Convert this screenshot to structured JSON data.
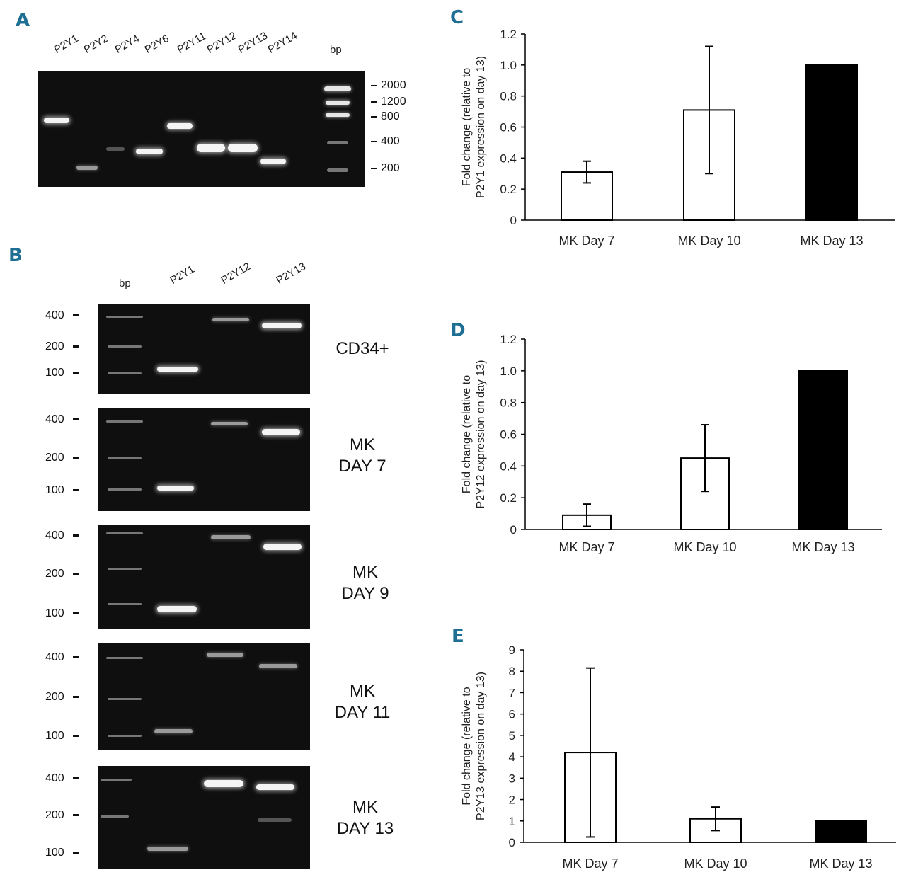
{
  "panels": {
    "a": "A",
    "b": "B",
    "c": "C",
    "d": "D",
    "e": "E"
  },
  "gel_a": {
    "lanes": [
      "P2Y1",
      "P2Y2",
      "P2Y4",
      "P2Y6",
      "P2Y11",
      "P2Y12",
      "P2Y13",
      "P2Y14",
      "bp"
    ],
    "markers": [
      "2000",
      "1200",
      "800",
      "400",
      "200"
    ]
  },
  "gel_b": {
    "columns": [
      "bp",
      "P2Y1",
      "P2Y12",
      "P2Y13"
    ],
    "markers": [
      "400",
      "200",
      "100"
    ],
    "rows": [
      {
        "label_line1": "CD34+",
        "label_line2": ""
      },
      {
        "label_line1": "MK",
        "label_line2": "DAY 7"
      },
      {
        "label_line1": "MK",
        "label_line2": "DAY 9"
      },
      {
        "label_line1": "MK",
        "label_line2": "DAY 11"
      },
      {
        "label_line1": "MK",
        "label_line2": "DAY 13"
      }
    ]
  },
  "colors": {
    "panel_letter": "#1f6f95",
    "bar_open": "#ffffff",
    "bar_filled": "#000000"
  },
  "chart_data": [
    {
      "panel": "C",
      "type": "bar",
      "categories": [
        "MK Day 7",
        "MK Day 10",
        "MK Day 13"
      ],
      "values": [
        0.31,
        0.71,
        1.0
      ],
      "errors": [
        0.07,
        0.41,
        0
      ],
      "fills": [
        "open",
        "open",
        "filled"
      ],
      "ylabel_line1": "Fold change (relative to",
      "ylabel_line2": "P2Y1 expression on day 13)",
      "ylim": [
        0,
        1.2
      ],
      "yticks": [
        "0",
        "0.2",
        "0.4",
        "0.6",
        "0.8",
        "1.0",
        "1.2"
      ]
    },
    {
      "panel": "D",
      "type": "bar",
      "categories": [
        "MK Day 7",
        "MK Day 10",
        "MK Day 13"
      ],
      "values": [
        0.09,
        0.45,
        1.0
      ],
      "errors": [
        0.07,
        0.21,
        0
      ],
      "fills": [
        "open",
        "open",
        "filled"
      ],
      "ylabel_line1": "Fold change (relative to",
      "ylabel_line2": "P2Y12 expression on day 13)",
      "ylim": [
        0,
        1.2
      ],
      "yticks": [
        "0",
        "0.2",
        "0.4",
        "0.6",
        "0.8",
        "1.0",
        "1.2"
      ]
    },
    {
      "panel": "E",
      "type": "bar",
      "categories": [
        "MK Day 7",
        "MK Day 10",
        "MK Day 13"
      ],
      "values": [
        4.2,
        1.1,
        1.0
      ],
      "errors": [
        3.95,
        0.55,
        0
      ],
      "fills": [
        "open",
        "open",
        "filled"
      ],
      "ylabel_line1": "Fold change (relative to",
      "ylabel_line2": "P2Y13 expression on day 13)",
      "ylim": [
        0,
        9
      ],
      "yticks": [
        "0",
        "1",
        "2",
        "3",
        "4",
        "5",
        "6",
        "7",
        "8",
        "9"
      ]
    }
  ]
}
